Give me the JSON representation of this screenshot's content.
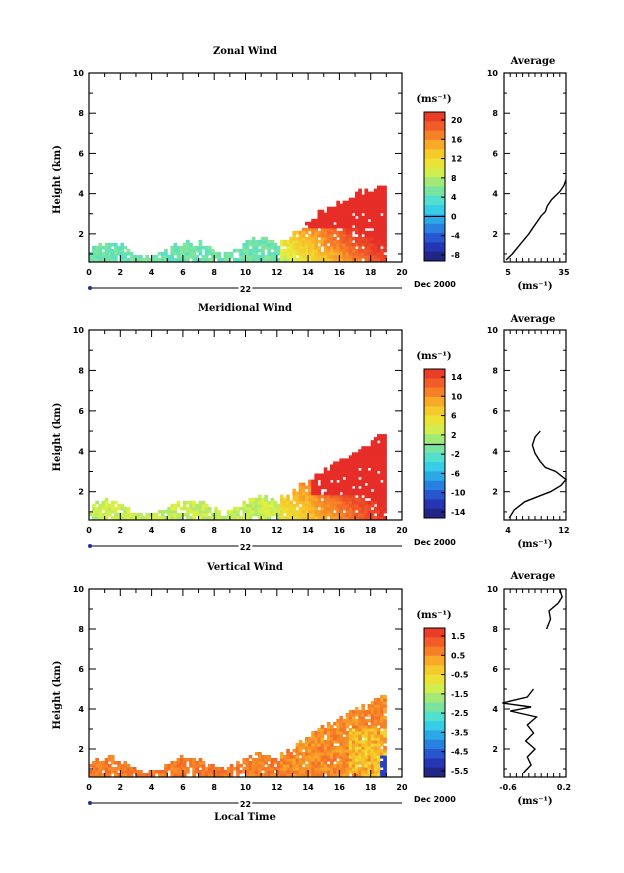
{
  "common": {
    "xticks": [
      "0",
      "2",
      "4",
      "6",
      "8",
      "10",
      "12",
      "14",
      "16",
      "18",
      "20"
    ],
    "date_day": "22",
    "date_label": "Dec 2000",
    "ylabel": "Height (km)",
    "xlabel": "Local Time",
    "units": "(ms⁻¹)",
    "avg_title": "Average",
    "avg_unit": "(ms⁻¹)"
  },
  "chart_data": [
    {
      "type": "heatmap",
      "title": "Zonal Wind",
      "xlim": [
        0,
        20
      ],
      "ylim": [
        0.6,
        10
      ],
      "yticks": [
        "2",
        "4",
        "6",
        "8",
        "10"
      ],
      "cbar_ticks": [
        "20",
        "16",
        "12",
        "8",
        "4",
        "0",
        "-4",
        "-8"
      ],
      "cbar_range": [
        -10,
        22
      ],
      "field": "zonal",
      "avg": {
        "title": "Average",
        "xlim": [
          5,
          35
        ],
        "xticks": [
          "5",
          "35"
        ],
        "yticks": [
          "2",
          "4",
          "6",
          "8",
          "10"
        ],
        "profile": [
          [
            6,
            0.7
          ],
          [
            9,
            1.0
          ],
          [
            13,
            1.5
          ],
          [
            17,
            2.0
          ],
          [
            19,
            2.3
          ],
          [
            21,
            2.6
          ],
          [
            23,
            2.9
          ],
          [
            25,
            3.1
          ],
          [
            26,
            3.4
          ],
          [
            28,
            3.7
          ],
          [
            30,
            3.9
          ],
          [
            32,
            4.1
          ],
          [
            34,
            4.4
          ],
          [
            35,
            4.7
          ]
        ]
      }
    },
    {
      "type": "heatmap",
      "title": "Meridional Wind",
      "xlim": [
        0,
        20
      ],
      "ylim": [
        0.6,
        10
      ],
      "yticks": [
        "2",
        "4",
        "6",
        "8",
        "10"
      ],
      "cbar_ticks": [
        "14",
        "10",
        "6",
        "2",
        "-2",
        "-6",
        "-10",
        "-14"
      ],
      "cbar_range": [
        -16,
        16
      ],
      "field": "meridional",
      "avg": {
        "title": "Average",
        "xlim": [
          2,
          14
        ],
        "xticks": [
          "4",
          "12"
        ],
        "yticks": [
          "2",
          "4",
          "6",
          "8",
          "10"
        ],
        "profile": [
          [
            3,
            0.7
          ],
          [
            4,
            1.1
          ],
          [
            6,
            1.5
          ],
          [
            9,
            1.8
          ],
          [
            11,
            2.0
          ],
          [
            13,
            2.3
          ],
          [
            14,
            2.6
          ],
          [
            12,
            3.0
          ],
          [
            10,
            3.2
          ],
          [
            9,
            3.5
          ],
          [
            8,
            3.9
          ],
          [
            7.5,
            4.3
          ],
          [
            8,
            4.7
          ],
          [
            9,
            5.0
          ]
        ]
      }
    },
    {
      "type": "heatmap",
      "title": "Vertical Wind",
      "xlim": [
        0,
        20
      ],
      "ylim": [
        0.6,
        10
      ],
      "yticks": [
        "2",
        "4",
        "6",
        "8",
        "10"
      ],
      "cbar_ticks": [
        "1.5",
        "0.5",
        "-0.5",
        "-1.5",
        "-2.5",
        "-3.5",
        "-4.5",
        "-5.5"
      ],
      "cbar_range": [
        -6,
        2
      ],
      "field": "vertical",
      "avg": {
        "title": "Average",
        "xlim": [
          -0.6,
          0.2
        ],
        "xticks": [
          "-0.6",
          "0.2"
        ],
        "yticks": [
          "2",
          "4",
          "6",
          "8",
          "10"
        ],
        "profile": [
          [
            -0.35,
            0.8
          ],
          [
            -0.25,
            1.2
          ],
          [
            -0.3,
            1.6
          ],
          [
            -0.2,
            2.0
          ],
          [
            -0.32,
            2.4
          ],
          [
            -0.22,
            2.8
          ],
          [
            -0.3,
            3.2
          ],
          [
            -0.18,
            3.6
          ],
          [
            -0.52,
            3.9
          ],
          [
            -0.25,
            4.1
          ],
          [
            -0.62,
            4.3
          ],
          [
            -0.3,
            4.6
          ],
          [
            -0.22,
            5.0
          ]
        ],
        "profile_top": [
          [
            -0.05,
            8.0
          ],
          [
            0.0,
            8.5
          ],
          [
            -0.02,
            8.9
          ],
          [
            0.1,
            9.3
          ],
          [
            0.15,
            9.6
          ],
          [
            0.12,
            10.0
          ]
        ]
      }
    }
  ]
}
